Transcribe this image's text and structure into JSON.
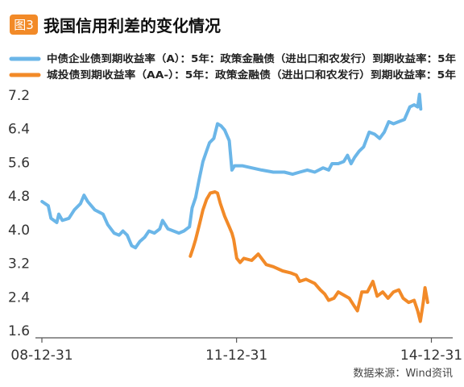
{
  "figure": {
    "badge": "图3",
    "title": "我国信用利差的变化情况",
    "source": "数据来源：Wind资讯"
  },
  "colors": {
    "badge": "#F28A28",
    "series_a": "#6BB6E8",
    "series_b": "#F28A28",
    "axis": "#555555"
  },
  "chart_data": {
    "type": "line",
    "ylim": [
      1.6,
      7.2
    ],
    "yticks": [
      {
        "value": 7.2,
        "label": "7.2"
      },
      {
        "value": 6.4,
        "label": "6.4"
      },
      {
        "value": 5.6,
        "label": "5.6"
      },
      {
        "value": 4.8,
        "label": "4.8"
      },
      {
        "value": 4.0,
        "label": "4.0"
      },
      {
        "value": 3.2,
        "label": "3.2"
      },
      {
        "value": 2.4,
        "label": "2.4"
      },
      {
        "value": 1.6,
        "label": "1.6"
      }
    ],
    "xlim": [
      "2008-12-31",
      "2015-04-30"
    ],
    "xticks": [
      {
        "value": "2008-12-31",
        "label": "08-12-31"
      },
      {
        "value": "2011-12-31",
        "label": "11-12-31"
      },
      {
        "value": "2014-12-31",
        "label": "14-12-31"
      }
    ],
    "series": [
      {
        "name": "中债企业债到期收益率（A）：5年：政策金融债（进出口和农发行）到期收益率：5年",
        "color": "#6BB6E8",
        "points": [
          [
            "2009-01-01",
            4.65
          ],
          [
            "2009-02-05",
            4.55
          ],
          [
            "2009-02-20",
            4.25
          ],
          [
            "2009-03-25",
            4.15
          ],
          [
            "2009-04-05",
            4.35
          ],
          [
            "2009-04-25",
            4.2
          ],
          [
            "2009-06-01",
            4.25
          ],
          [
            "2009-07-01",
            4.45
          ],
          [
            "2009-08-05",
            4.6
          ],
          [
            "2009-08-25",
            4.8
          ],
          [
            "2009-09-15",
            4.65
          ],
          [
            "2009-10-25",
            4.45
          ],
          [
            "2009-12-10",
            4.35
          ],
          [
            "2010-01-05",
            4.1
          ],
          [
            "2010-02-10",
            3.9
          ],
          [
            "2010-03-10",
            3.85
          ],
          [
            "2010-04-01",
            3.95
          ],
          [
            "2010-04-25",
            3.85
          ],
          [
            "2010-05-20",
            3.6
          ],
          [
            "2010-06-10",
            3.55
          ],
          [
            "2010-07-05",
            3.7
          ],
          [
            "2010-08-01",
            3.8
          ],
          [
            "2010-08-25",
            3.95
          ],
          [
            "2010-09-25",
            3.9
          ],
          [
            "2010-10-25",
            4.0
          ],
          [
            "2010-11-10",
            4.2
          ],
          [
            "2010-12-10",
            4.0
          ],
          [
            "2011-01-10",
            3.95
          ],
          [
            "2011-02-10",
            3.9
          ],
          [
            "2011-03-10",
            3.95
          ],
          [
            "2011-04-10",
            4.05
          ],
          [
            "2011-04-25",
            4.5
          ],
          [
            "2011-05-15",
            4.75
          ],
          [
            "2011-06-05",
            5.2
          ],
          [
            "2011-06-25",
            5.6
          ],
          [
            "2011-07-15",
            5.85
          ],
          [
            "2011-08-01",
            6.05
          ],
          [
            "2011-08-25",
            6.15
          ],
          [
            "2011-09-15",
            6.5
          ],
          [
            "2011-10-05",
            6.45
          ],
          [
            "2011-10-25",
            6.35
          ],
          [
            "2011-11-20",
            6.1
          ],
          [
            "2011-12-05",
            5.4
          ],
          [
            "2011-12-20",
            5.5
          ],
          [
            "2012-02-01",
            5.5
          ],
          [
            "2012-03-25",
            5.45
          ],
          [
            "2012-05-20",
            5.4
          ],
          [
            "2012-07-25",
            5.35
          ],
          [
            "2012-09-25",
            5.35
          ],
          [
            "2012-11-10",
            5.3
          ],
          [
            "2012-12-20",
            5.35
          ],
          [
            "2013-02-01",
            5.4
          ],
          [
            "2013-03-15",
            5.35
          ],
          [
            "2013-05-01",
            5.45
          ],
          [
            "2013-06-01",
            5.4
          ],
          [
            "2013-06-20",
            5.55
          ],
          [
            "2013-07-25",
            5.55
          ],
          [
            "2013-08-25",
            5.6
          ],
          [
            "2013-09-15",
            5.75
          ],
          [
            "2013-10-05",
            5.55
          ],
          [
            "2013-10-25",
            5.7
          ],
          [
            "2013-11-20",
            5.85
          ],
          [
            "2013-12-15",
            5.95
          ],
          [
            "2014-01-15",
            6.3
          ],
          [
            "2014-02-15",
            6.25
          ],
          [
            "2014-03-15",
            6.15
          ],
          [
            "2014-04-10",
            6.3
          ],
          [
            "2014-05-05",
            6.55
          ],
          [
            "2014-06-01",
            6.5
          ],
          [
            "2014-07-01",
            6.55
          ],
          [
            "2014-08-01",
            6.6
          ],
          [
            "2014-09-01",
            6.9
          ],
          [
            "2014-09-25",
            6.95
          ],
          [
            "2014-10-15",
            6.9
          ],
          [
            "2014-10-25",
            7.2
          ],
          [
            "2014-11-01",
            6.85
          ]
        ]
      },
      {
        "name": "城投债到期收益率（AA-）：5年：政策金融债（进出口和农发行）到期收益率：5年",
        "color": "#F28A28",
        "points": [
          [
            "2011-04-15",
            3.35
          ],
          [
            "2011-05-01",
            3.55
          ],
          [
            "2011-05-15",
            3.75
          ],
          [
            "2011-06-05",
            4.1
          ],
          [
            "2011-06-25",
            4.45
          ],
          [
            "2011-07-15",
            4.7
          ],
          [
            "2011-08-05",
            4.85
          ],
          [
            "2011-09-01",
            4.88
          ],
          [
            "2011-09-15",
            4.85
          ],
          [
            "2011-10-01",
            4.6
          ],
          [
            "2011-10-25",
            4.3
          ],
          [
            "2011-11-20",
            4.05
          ],
          [
            "2011-12-05",
            3.9
          ],
          [
            "2011-12-15",
            3.75
          ],
          [
            "2012-01-01",
            3.3
          ],
          [
            "2012-01-20",
            3.2
          ],
          [
            "2012-02-10",
            3.3
          ],
          [
            "2012-03-25",
            3.25
          ],
          [
            "2012-05-01",
            3.4
          ],
          [
            "2012-06-15",
            3.15
          ],
          [
            "2012-07-25",
            3.1
          ],
          [
            "2012-09-15",
            3.0
          ],
          [
            "2012-11-01",
            2.95
          ],
          [
            "2012-12-01",
            2.9
          ],
          [
            "2012-12-20",
            2.75
          ],
          [
            "2013-01-25",
            2.8
          ],
          [
            "2013-03-15",
            2.7
          ],
          [
            "2013-04-15",
            2.55
          ],
          [
            "2013-05-10",
            2.45
          ],
          [
            "2013-06-01",
            2.3
          ],
          [
            "2013-07-01",
            2.35
          ],
          [
            "2013-07-25",
            2.5
          ],
          [
            "2013-09-25",
            2.35
          ],
          [
            "2013-10-25",
            2.15
          ],
          [
            "2013-11-10",
            2.05
          ],
          [
            "2013-12-05",
            2.5
          ],
          [
            "2014-01-05",
            2.5
          ],
          [
            "2014-02-05",
            2.75
          ],
          [
            "2014-03-01",
            2.4
          ],
          [
            "2014-04-01",
            2.5
          ],
          [
            "2014-05-01",
            2.35
          ],
          [
            "2014-06-01",
            2.5
          ],
          [
            "2014-07-01",
            2.55
          ],
          [
            "2014-07-25",
            2.35
          ],
          [
            "2014-08-25",
            2.25
          ],
          [
            "2014-09-25",
            2.3
          ],
          [
            "2014-10-15",
            2.05
          ],
          [
            "2014-10-30",
            1.8
          ],
          [
            "2014-11-15",
            2.25
          ],
          [
            "2014-11-25",
            2.6
          ],
          [
            "2014-12-10",
            2.25
          ]
        ]
      }
    ]
  }
}
